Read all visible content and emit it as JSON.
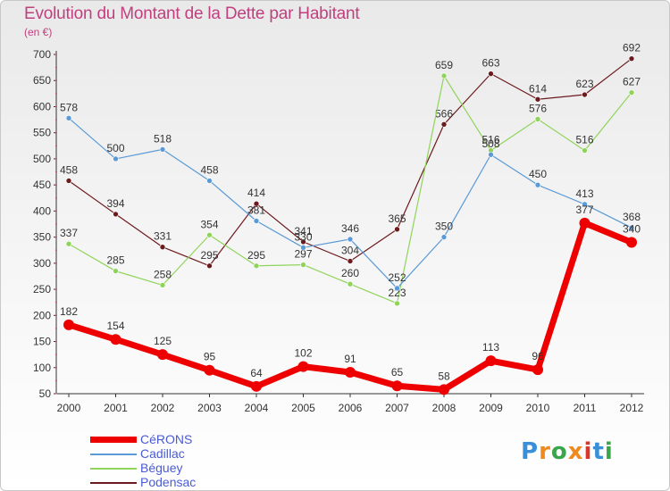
{
  "title": "Evolution du Montant de la Dette par Habitant",
  "subtitle": "(en €)",
  "logo": {
    "letters": [
      "P",
      "r",
      "o",
      "x",
      "i",
      "t",
      "i"
    ],
    "colors": [
      "#3a8fd8",
      "#f08a1c",
      "#3aa54a",
      "#f08a1c",
      "#d8382c",
      "#3a8fd8",
      "#3aa54a"
    ]
  },
  "chart_data": {
    "type": "line",
    "x": [
      "2000",
      "2001",
      "2002",
      "2003",
      "2004",
      "2005",
      "2006",
      "2007",
      "2008",
      "2009",
      "2010",
      "2011",
      "2012"
    ],
    "ylim": [
      50,
      700
    ],
    "yticks": [
      "700",
      "650",
      "600",
      "550",
      "500",
      "450",
      "400",
      "350",
      "300",
      "250",
      "200",
      "150",
      "100",
      "50"
    ],
    "grid": false,
    "legend_position": "bottom-left",
    "series": [
      {
        "name": "Podensac",
        "color": "#6b1a1e",
        "width": 1.2,
        "radius": 3,
        "values": [
          458,
          394,
          331,
          295,
          414,
          341,
          304,
          365,
          566,
          663,
          614,
          623,
          692
        ],
        "labels": [
          "458",
          "394",
          "331",
          "295",
          "414",
          "341",
          "304",
          "365",
          "566",
          "663",
          "614",
          "623",
          "692"
        ]
      },
      {
        "name": "Béguey",
        "color": "#8fd45a",
        "width": 1.2,
        "radius": 3,
        "values": [
          337,
          285,
          258,
          354,
          295,
          297,
          260,
          223,
          659,
          516,
          576,
          516,
          627
        ],
        "labels": [
          "337",
          "285",
          "258",
          "354",
          "295",
          "297",
          "260",
          "223",
          "659",
          "516",
          "576",
          "516",
          "627"
        ]
      },
      {
        "name": "Cadillac",
        "color": "#5a9ad6",
        "width": 1.2,
        "radius": 3,
        "values": [
          578,
          500,
          518,
          458,
          381,
          330,
          346,
          252,
          350,
          508,
          450,
          413,
          368
        ],
        "labels": [
          "578",
          "500",
          "518",
          "458",
          "381",
          "330",
          "346",
          "252",
          "350",
          "508",
          "450",
          "413",
          "368"
        ]
      },
      {
        "name": "CéRONS",
        "color": "#ee0000",
        "width": 7,
        "radius": 6,
        "values": [
          182,
          154,
          125,
          95,
          64,
          102,
          91,
          65,
          58,
          113,
          96,
          377,
          340
        ],
        "labels": [
          "182",
          "154",
          "125",
          "95",
          "64",
          "102",
          "91",
          "65",
          "58",
          "113",
          "96",
          "377",
          "340"
        ]
      }
    ],
    "legend": [
      "CéRONS",
      "Cadillac",
      "Béguey",
      "Podensac"
    ]
  }
}
